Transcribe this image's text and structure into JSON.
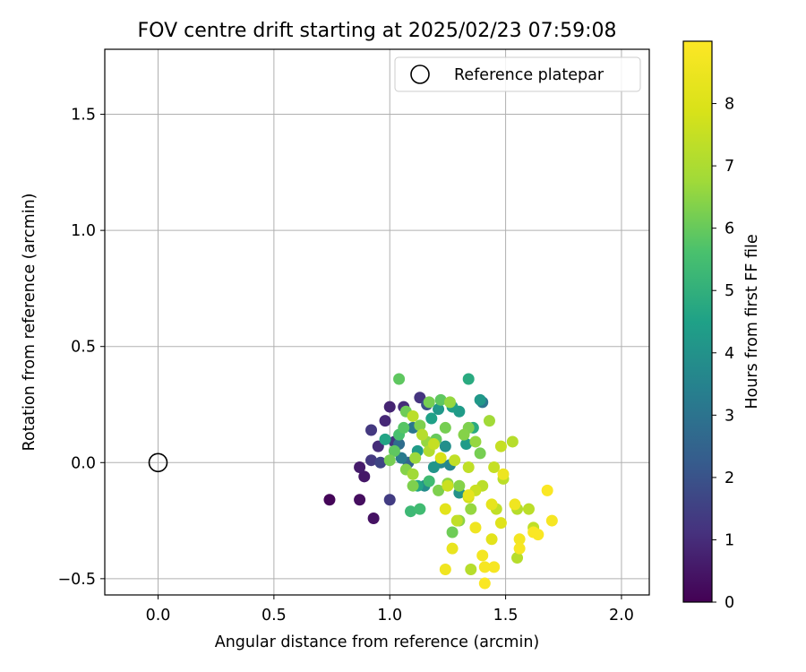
{
  "chart_data": {
    "type": "scatter",
    "title": "FOV centre drift starting at 2025/02/23 07:59:08",
    "xlabel": "Angular distance from reference (arcmin)",
    "ylabel": "Rotation from reference (arcmin)",
    "xlim": [
      -0.23,
      2.12
    ],
    "ylim": [
      -0.57,
      1.78
    ],
    "xticks": [
      "0.0",
      "0.5",
      "1.0",
      "1.5",
      "2.0"
    ],
    "yticks": [
      "−0.5",
      "0.0",
      "0.5",
      "1.0",
      "1.5"
    ],
    "grid": true,
    "legend": {
      "position": "top-right",
      "label": "Reference platepar"
    },
    "reference_point": {
      "x": 0.0,
      "y": 0.0
    },
    "colorbar": {
      "label": "Hours from first FF file",
      "range": [
        0,
        9
      ],
      "ticks": [
        "0",
        "1",
        "2",
        "3",
        "4",
        "5",
        "6",
        "7",
        "8"
      ],
      "colormap": "viridis"
    },
    "points": [
      {
        "x": 0.74,
        "y": -0.16,
        "c": 0.1
      },
      {
        "x": 0.87,
        "y": -0.16,
        "c": 0.3
      },
      {
        "x": 0.93,
        "y": -0.24,
        "c": 0.4
      },
      {
        "x": 0.89,
        "y": -0.06,
        "c": 0.5
      },
      {
        "x": 0.87,
        "y": -0.02,
        "c": 0.6
      },
      {
        "x": 0.92,
        "y": 0.01,
        "c": 1.3
      },
      {
        "x": 0.96,
        "y": 0.0,
        "c": 1.6
      },
      {
        "x": 0.92,
        "y": 0.14,
        "c": 1.3
      },
      {
        "x": 0.95,
        "y": 0.07,
        "c": 1.0
      },
      {
        "x": 0.98,
        "y": 0.18,
        "c": 0.9
      },
      {
        "x": 1.0,
        "y": 0.24,
        "c": 0.8
      },
      {
        "x": 1.06,
        "y": 0.24,
        "c": 1.0
      },
      {
        "x": 1.02,
        "y": 0.09,
        "c": 1.2
      },
      {
        "x": 1.0,
        "y": -0.16,
        "c": 1.4
      },
      {
        "x": 1.13,
        "y": 0.28,
        "c": 1.2
      },
      {
        "x": 1.16,
        "y": 0.25,
        "c": 1.9
      },
      {
        "x": 0.98,
        "y": 0.1,
        "c": 4.6
      },
      {
        "x": 1.04,
        "y": 0.08,
        "c": 2.8
      },
      {
        "x": 1.05,
        "y": 0.02,
        "c": 3.2
      },
      {
        "x": 1.08,
        "y": 0.0,
        "c": 2.5
      },
      {
        "x": 1.1,
        "y": 0.15,
        "c": 3.1
      },
      {
        "x": 1.12,
        "y": 0.05,
        "c": 4.3
      },
      {
        "x": 1.15,
        "y": -0.1,
        "c": 3.8
      },
      {
        "x": 1.18,
        "y": 0.19,
        "c": 4.5
      },
      {
        "x": 1.19,
        "y": -0.02,
        "c": 4.1
      },
      {
        "x": 1.21,
        "y": 0.23,
        "c": 4.2
      },
      {
        "x": 1.22,
        "y": 0.0,
        "c": 3.7
      },
      {
        "x": 1.24,
        "y": 0.07,
        "c": 3.9
      },
      {
        "x": 1.26,
        "y": -0.01,
        "c": 3.6
      },
      {
        "x": 1.27,
        "y": 0.24,
        "c": 4.4
      },
      {
        "x": 1.3,
        "y": 0.22,
        "c": 4.3
      },
      {
        "x": 1.3,
        "y": -0.13,
        "c": 4.0
      },
      {
        "x": 1.34,
        "y": 0.36,
        "c": 4.8
      },
      {
        "x": 1.39,
        "y": 0.27,
        "c": 4.2
      },
      {
        "x": 1.4,
        "y": 0.26,
        "c": 3.1
      },
      {
        "x": 1.33,
        "y": 0.08,
        "c": 4.3
      },
      {
        "x": 1.36,
        "y": 0.15,
        "c": 4.8
      },
      {
        "x": 1.12,
        "y": -0.1,
        "c": 4.6
      },
      {
        "x": 1.09,
        "y": -0.21,
        "c": 5.3
      },
      {
        "x": 1.13,
        "y": -0.2,
        "c": 5.4
      },
      {
        "x": 1.17,
        "y": -0.08,
        "c": 5.4
      },
      {
        "x": 1.04,
        "y": 0.36,
        "c": 5.9
      },
      {
        "x": 1.07,
        "y": 0.22,
        "c": 6.1
      },
      {
        "x": 1.06,
        "y": 0.15,
        "c": 5.8
      },
      {
        "x": 1.04,
        "y": 0.12,
        "c": 5.6
      },
      {
        "x": 1.02,
        "y": 0.05,
        "c": 5.9
      },
      {
        "x": 1.0,
        "y": 0.01,
        "c": 6.2
      },
      {
        "x": 1.07,
        "y": -0.03,
        "c": 6.4
      },
      {
        "x": 1.1,
        "y": -0.05,
        "c": 6.8
      },
      {
        "x": 1.1,
        "y": -0.1,
        "c": 6.3
      },
      {
        "x": 1.11,
        "y": 0.02,
        "c": 6.7
      },
      {
        "x": 1.13,
        "y": 0.16,
        "c": 6.3
      },
      {
        "x": 1.16,
        "y": 0.09,
        "c": 6.6
      },
      {
        "x": 1.17,
        "y": 0.26,
        "c": 6.2
      },
      {
        "x": 1.2,
        "y": 0.1,
        "c": 6.0
      },
      {
        "x": 1.21,
        "y": -0.12,
        "c": 6.3
      },
      {
        "x": 1.22,
        "y": 0.27,
        "c": 5.9
      },
      {
        "x": 1.24,
        "y": 0.15,
        "c": 6.2
      },
      {
        "x": 1.25,
        "y": -0.09,
        "c": 6.5
      },
      {
        "x": 1.26,
        "y": 0.26,
        "c": 6.6
      },
      {
        "x": 1.27,
        "y": -0.3,
        "c": 6.1
      },
      {
        "x": 1.3,
        "y": -0.1,
        "c": 6.4
      },
      {
        "x": 1.3,
        "y": -0.25,
        "c": 6.5
      },
      {
        "x": 1.32,
        "y": 0.12,
        "c": 6.4
      },
      {
        "x": 1.34,
        "y": 0.15,
        "c": 6.3
      },
      {
        "x": 1.35,
        "y": -0.2,
        "c": 6.6
      },
      {
        "x": 1.37,
        "y": 0.09,
        "c": 6.6
      },
      {
        "x": 1.39,
        "y": 0.04,
        "c": 6.2
      },
      {
        "x": 1.43,
        "y": 0.18,
        "c": 6.8
      },
      {
        "x": 1.1,
        "y": 0.2,
        "c": 7.3
      },
      {
        "x": 1.14,
        "y": 0.12,
        "c": 7.2
      },
      {
        "x": 1.17,
        "y": 0.05,
        "c": 7.1
      },
      {
        "x": 1.19,
        "y": 0.08,
        "c": 7.5
      },
      {
        "x": 1.22,
        "y": 0.02,
        "c": 7.9
      },
      {
        "x": 1.25,
        "y": -0.1,
        "c": 7.6
      },
      {
        "x": 1.28,
        "y": 0.01,
        "c": 7.4
      },
      {
        "x": 1.29,
        "y": -0.25,
        "c": 7.4
      },
      {
        "x": 1.34,
        "y": -0.02,
        "c": 7.4
      },
      {
        "x": 1.34,
        "y": -0.15,
        "c": 7.8
      },
      {
        "x": 1.35,
        "y": -0.46,
        "c": 7.2
      },
      {
        "x": 1.37,
        "y": -0.12,
        "c": 7.6
      },
      {
        "x": 1.4,
        "y": -0.1,
        "c": 7.3
      },
      {
        "x": 1.45,
        "y": -0.02,
        "c": 7.5
      },
      {
        "x": 1.46,
        "y": -0.2,
        "c": 7.4
      },
      {
        "x": 1.48,
        "y": 0.07,
        "c": 7.5
      },
      {
        "x": 1.49,
        "y": -0.07,
        "c": 7.3
      },
      {
        "x": 1.53,
        "y": 0.09,
        "c": 7.2
      },
      {
        "x": 1.55,
        "y": -0.2,
        "c": 7.2
      },
      {
        "x": 1.55,
        "y": -0.41,
        "c": 7.2
      },
      {
        "x": 1.6,
        "y": -0.2,
        "c": 7.3
      },
      {
        "x": 1.62,
        "y": -0.28,
        "c": 7.4
      },
      {
        "x": 1.24,
        "y": -0.2,
        "c": 8.2
      },
      {
        "x": 1.27,
        "y": -0.37,
        "c": 8.4
      },
      {
        "x": 1.24,
        "y": -0.46,
        "c": 8.6
      },
      {
        "x": 1.34,
        "y": -0.14,
        "c": 8.3
      },
      {
        "x": 1.37,
        "y": -0.28,
        "c": 8.6
      },
      {
        "x": 1.4,
        "y": -0.4,
        "c": 8.7
      },
      {
        "x": 1.41,
        "y": -0.45,
        "c": 8.8
      },
      {
        "x": 1.41,
        "y": -0.52,
        "c": 8.9
      },
      {
        "x": 1.44,
        "y": -0.18,
        "c": 8.3
      },
      {
        "x": 1.44,
        "y": -0.33,
        "c": 8.2
      },
      {
        "x": 1.45,
        "y": -0.45,
        "c": 8.8
      },
      {
        "x": 1.48,
        "y": -0.26,
        "c": 8.1
      },
      {
        "x": 1.49,
        "y": -0.05,
        "c": 8.5
      },
      {
        "x": 1.54,
        "y": -0.18,
        "c": 8.6
      },
      {
        "x": 1.56,
        "y": -0.33,
        "c": 8.7
      },
      {
        "x": 1.56,
        "y": -0.37,
        "c": 8.8
      },
      {
        "x": 1.62,
        "y": -0.3,
        "c": 8.9
      },
      {
        "x": 1.64,
        "y": -0.31,
        "c": 8.9
      },
      {
        "x": 1.68,
        "y": -0.12,
        "c": 8.9
      },
      {
        "x": 1.7,
        "y": -0.25,
        "c": 8.8
      }
    ]
  }
}
